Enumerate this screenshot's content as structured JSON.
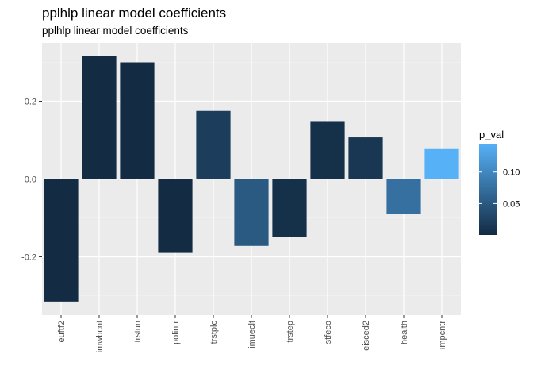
{
  "chart_data": {
    "type": "bar",
    "title": "pplhlp linear model coefficients",
    "subtitle": "pplhlp linear model coefficients",
    "xlabel": "",
    "ylabel": "",
    "categories": [
      "euftf2",
      "imwbcnt",
      "trstun",
      "polintr",
      "trstplc",
      "imueclt",
      "trstep",
      "stfeco",
      "eisced2",
      "health",
      "impcntr"
    ],
    "series": [
      {
        "values": [
          -0.315,
          0.317,
          0.3,
          -0.19,
          0.175,
          -0.172,
          -0.148,
          0.147,
          0.107,
          -0.09,
          0.077
        ],
        "p_val": [
          0.0001,
          0.0001,
          0.0001,
          0.001,
          0.02,
          0.05,
          0.005,
          0.005,
          0.012,
          0.075,
          0.145
        ]
      }
    ],
    "ylim": [
      -0.35,
      0.35
    ],
    "yticks": [
      -0.2,
      0.0,
      0.2
    ],
    "ytick_labels": [
      "-0.2",
      "0.0",
      "0.2"
    ],
    "grid": true,
    "legend": {
      "title": "p_val",
      "position": "right",
      "type": "colorbar",
      "range": [
        0.0001,
        0.145
      ],
      "ticks": [
        0.05,
        0.1
      ],
      "tick_labels": [
        "0.05",
        "0.10"
      ],
      "color_low": "#132b43",
      "color_high": "#56b1f7"
    },
    "colors": {
      "panel_background": "#ebebeb",
      "grid_major": "#ffffff",
      "grid_minor": "#f5f5f5"
    }
  }
}
